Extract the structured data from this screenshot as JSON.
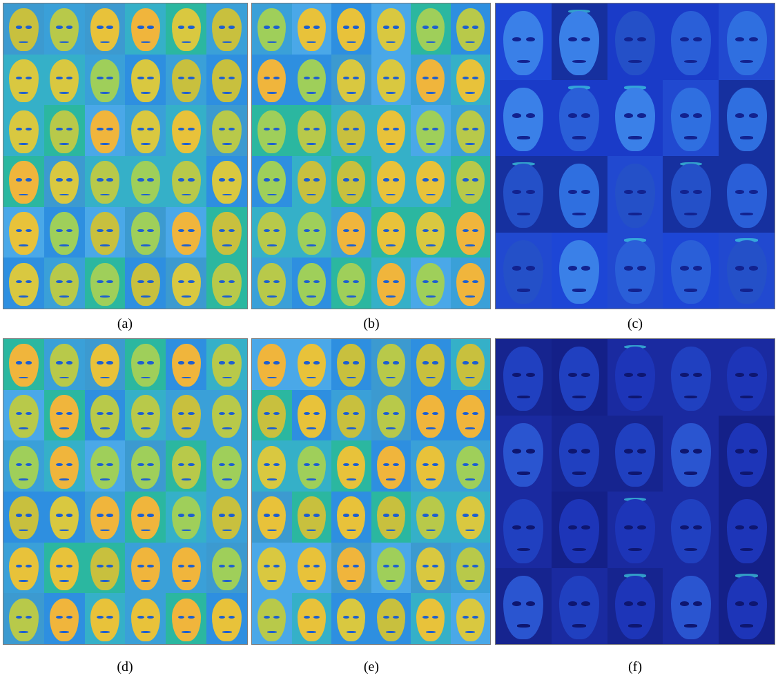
{
  "figure": {
    "panels": [
      {
        "id": "a",
        "label": "(a)",
        "rows": 6,
        "cols": 6,
        "style": "parula-bright"
      },
      {
        "id": "b",
        "label": "(b)",
        "rows": 6,
        "cols": 6,
        "style": "parula-bright"
      },
      {
        "id": "c",
        "label": "(c)",
        "rows": 4,
        "cols": 5,
        "style": "dark-residual"
      },
      {
        "id": "d",
        "label": "(d)",
        "rows": 6,
        "cols": 6,
        "style": "parula-bright"
      },
      {
        "id": "e",
        "label": "(e)",
        "rows": 6,
        "cols": 6,
        "style": "parula-bright"
      },
      {
        "id": "f",
        "label": "(f)",
        "rows": 4,
        "cols": 5,
        "style": "very-dark-residual"
      }
    ],
    "palette": {
      "parula_bg": "#3aa0d8",
      "parula_face": "#e8c23a",
      "parula_mid": "#2bb7a0",
      "parula_dark": "#1d5fd0",
      "residual_bg": "#1a3bc8",
      "residual_face": "#2f6fe0",
      "residual_dark": "#12228f",
      "residual_highlight": "#3fd0e0",
      "frame": "#7a7a7a"
    },
    "tile_icon": "face-thumbnail-icon"
  }
}
